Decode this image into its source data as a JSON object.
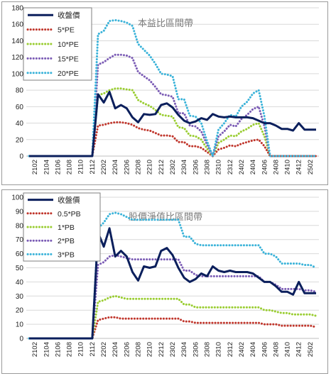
{
  "chart_data": [
    {
      "type": "line",
      "title": "本益比區間帶",
      "ylim": [
        0,
        180
      ],
      "yticks": [
        0,
        20,
        40,
        60,
        80,
        100,
        120,
        140,
        160,
        180
      ],
      "x": [
        "2101",
        "2102",
        "2103",
        "2104",
        "2105",
        "2106",
        "2107",
        "2108",
        "2109",
        "2110",
        "2111",
        "2112",
        "2201",
        "2202",
        "2203",
        "2204",
        "2205",
        "2206",
        "2207",
        "2208",
        "2209",
        "2210",
        "2211",
        "2212",
        "2301",
        "2302",
        "2303",
        "2304",
        "2305",
        "2306",
        "2307",
        "2308",
        "2309",
        "2310",
        "2311",
        "2312",
        "2401",
        "2402",
        "2403",
        "2404",
        "2405",
        "2406",
        "2407",
        "2408",
        "2409",
        "2410",
        "2411",
        "2412",
        "2501",
        "2502",
        "2503"
      ],
      "xtick_labels": [
        "2102",
        "2104",
        "2106",
        "2108",
        "2110",
        "2112",
        "2202",
        "2204",
        "2206",
        "2208",
        "2210",
        "2212",
        "2302",
        "2304",
        "2306",
        "2308",
        "2310",
        "2312",
        "2402",
        "2404",
        "2406",
        "2408",
        "2410",
        "2412",
        "2502"
      ],
      "legend_position": "top-left",
      "series": [
        {
          "name": "收盤價",
          "color": "#0b1f5c",
          "style": "solid",
          "values": [
            0,
            0,
            0,
            0,
            0,
            0,
            0,
            0,
            0,
            0,
            0,
            0,
            75,
            65,
            78,
            58,
            62,
            58,
            47,
            41,
            51,
            50,
            51,
            62,
            64,
            59,
            50,
            43,
            40,
            42,
            46,
            44,
            51,
            48,
            47,
            48,
            47,
            47,
            47,
            46,
            43,
            40,
            40,
            37,
            33,
            33,
            31,
            40,
            32,
            32,
            32
          ]
        },
        {
          "name": "5*PE",
          "color": "#c0362c",
          "style": "dotted",
          "values": [
            0,
            0,
            0,
            0,
            0,
            0,
            0,
            0,
            0,
            0,
            0,
            0,
            37,
            38,
            40,
            41,
            41,
            40,
            38,
            34,
            32,
            31,
            28,
            25,
            25,
            24,
            17,
            17,
            12,
            12,
            10,
            5,
            0,
            8,
            10,
            13,
            12,
            15,
            17,
            19,
            20,
            12,
            0,
            0,
            0,
            0,
            0,
            0,
            0,
            0,
            0
          ]
        },
        {
          "name": "10*PE",
          "color": "#9acd32",
          "style": "dotted",
          "values": [
            0,
            0,
            0,
            0,
            0,
            0,
            0,
            0,
            0,
            0,
            0,
            0,
            74,
            76,
            80,
            82,
            82,
            81,
            80,
            68,
            64,
            61,
            56,
            50,
            49,
            48,
            35,
            34,
            25,
            24,
            20,
            9,
            0,
            16,
            20,
            25,
            24,
            30,
            33,
            38,
            40,
            24,
            0,
            0,
            0,
            0,
            0,
            0,
            0,
            0,
            0
          ]
        },
        {
          "name": "15*PE",
          "color": "#7b5cb5",
          "style": "dotted",
          "values": [
            0,
            0,
            0,
            0,
            0,
            0,
            0,
            0,
            0,
            0,
            0,
            0,
            111,
            114,
            119,
            123,
            123,
            122,
            119,
            102,
            97,
            92,
            84,
            75,
            74,
            72,
            52,
            52,
            37,
            36,
            30,
            14,
            0,
            24,
            30,
            38,
            36,
            45,
            50,
            57,
            60,
            36,
            0,
            0,
            0,
            0,
            0,
            0,
            0,
            0,
            0
          ]
        },
        {
          "name": "20*PE",
          "color": "#3bb3d9",
          "style": "dotted",
          "values": [
            0,
            0,
            0,
            0,
            0,
            0,
            0,
            0,
            0,
            0,
            0,
            0,
            148,
            152,
            164,
            165,
            164,
            162,
            158,
            136,
            129,
            122,
            112,
            100,
            99,
            97,
            69,
            69,
            49,
            48,
            40,
            18,
            0,
            32,
            40,
            50,
            48,
            60,
            66,
            76,
            80,
            48,
            0,
            0,
            0,
            0,
            0,
            0,
            0,
            0,
            0
          ]
        }
      ]
    },
    {
      "type": "line",
      "title": "股價淨值比區間帶",
      "ylim": [
        0,
        100
      ],
      "yticks": [
        0,
        10,
        20,
        30,
        40,
        50,
        60,
        70,
        80,
        90,
        100
      ],
      "x": [
        "2101",
        "2102",
        "2103",
        "2104",
        "2105",
        "2106",
        "2107",
        "2108",
        "2109",
        "2110",
        "2111",
        "2112",
        "2201",
        "2202",
        "2203",
        "2204",
        "2205",
        "2206",
        "2207",
        "2208",
        "2209",
        "2210",
        "2211",
        "2212",
        "2301",
        "2302",
        "2303",
        "2304",
        "2305",
        "2306",
        "2307",
        "2308",
        "2309",
        "2310",
        "2311",
        "2312",
        "2401",
        "2402",
        "2403",
        "2404",
        "2405",
        "2406",
        "2407",
        "2408",
        "2409",
        "2410",
        "2411",
        "2412",
        "2501",
        "2502",
        "2503"
      ],
      "xtick_labels": [
        "2102",
        "2104",
        "2106",
        "2108",
        "2110",
        "2112",
        "2202",
        "2204",
        "2206",
        "2208",
        "2210",
        "2212",
        "2302",
        "2304",
        "2306",
        "2308",
        "2310",
        "2312",
        "2402",
        "2404",
        "2406",
        "2408",
        "2410",
        "2412",
        "2502"
      ],
      "legend_position": "top-left",
      "series": [
        {
          "name": "收盤價",
          "color": "#0b1f5c",
          "style": "solid",
          "values": [
            0,
            0,
            0,
            0,
            0,
            0,
            0,
            0,
            0,
            0,
            0,
            0,
            75,
            65,
            78,
            58,
            62,
            58,
            47,
            41,
            51,
            50,
            51,
            62,
            64,
            59,
            50,
            43,
            40,
            42,
            46,
            44,
            51,
            48,
            47,
            48,
            47,
            47,
            47,
            46,
            43,
            40,
            40,
            37,
            33,
            33,
            31,
            40,
            32,
            32,
            32
          ]
        },
        {
          "name": "0.5*PB",
          "color": "#c0362c",
          "style": "dotted",
          "values": [
            0,
            0,
            0,
            0,
            0,
            0,
            0,
            0,
            0,
            0,
            0,
            0,
            13,
            14,
            15,
            15,
            14,
            14,
            14,
            14,
            14,
            14,
            14,
            14,
            14,
            14,
            14,
            12,
            12,
            11,
            11,
            11,
            11,
            11,
            11,
            11,
            11,
            11,
            11,
            11,
            11,
            10,
            10,
            10,
            9,
            9,
            9,
            9,
            9,
            9,
            8
          ]
        },
        {
          "name": "1*PB",
          "color": "#9acd32",
          "style": "dotted",
          "values": [
            0,
            0,
            0,
            0,
            0,
            0,
            0,
            0,
            0,
            0,
            0,
            0,
            26,
            27,
            29,
            30,
            29,
            28,
            28,
            28,
            28,
            28,
            28,
            28,
            28,
            28,
            28,
            24,
            24,
            22,
            22,
            22,
            22,
            22,
            22,
            22,
            22,
            22,
            22,
            22,
            22,
            20,
            20,
            19,
            18,
            18,
            17,
            17,
            17,
            17,
            16
          ]
        },
        {
          "name": "2*PB",
          "color": "#7b5cb5",
          "style": "dotted",
          "values": [
            0,
            0,
            0,
            0,
            0,
            0,
            0,
            0,
            0,
            0,
            0,
            0,
            52,
            54,
            58,
            59,
            58,
            57,
            56,
            56,
            56,
            56,
            56,
            56,
            56,
            56,
            56,
            48,
            48,
            45,
            44,
            44,
            44,
            44,
            44,
            44,
            44,
            44,
            44,
            44,
            44,
            40,
            40,
            38,
            35,
            35,
            35,
            35,
            34,
            34,
            33
          ]
        },
        {
          "name": "3*PB",
          "color": "#3bb3d9",
          "style": "dotted",
          "values": [
            0,
            0,
            0,
            0,
            0,
            0,
            0,
            0,
            0,
            0,
            0,
            0,
            78,
            82,
            88,
            89,
            88,
            86,
            84,
            84,
            84,
            84,
            84,
            84,
            84,
            84,
            84,
            72,
            72,
            67,
            66,
            66,
            66,
            66,
            66,
            66,
            66,
            66,
            66,
            66,
            66,
            60,
            60,
            58,
            53,
            53,
            53,
            53,
            52,
            52,
            50
          ]
        }
      ]
    }
  ]
}
